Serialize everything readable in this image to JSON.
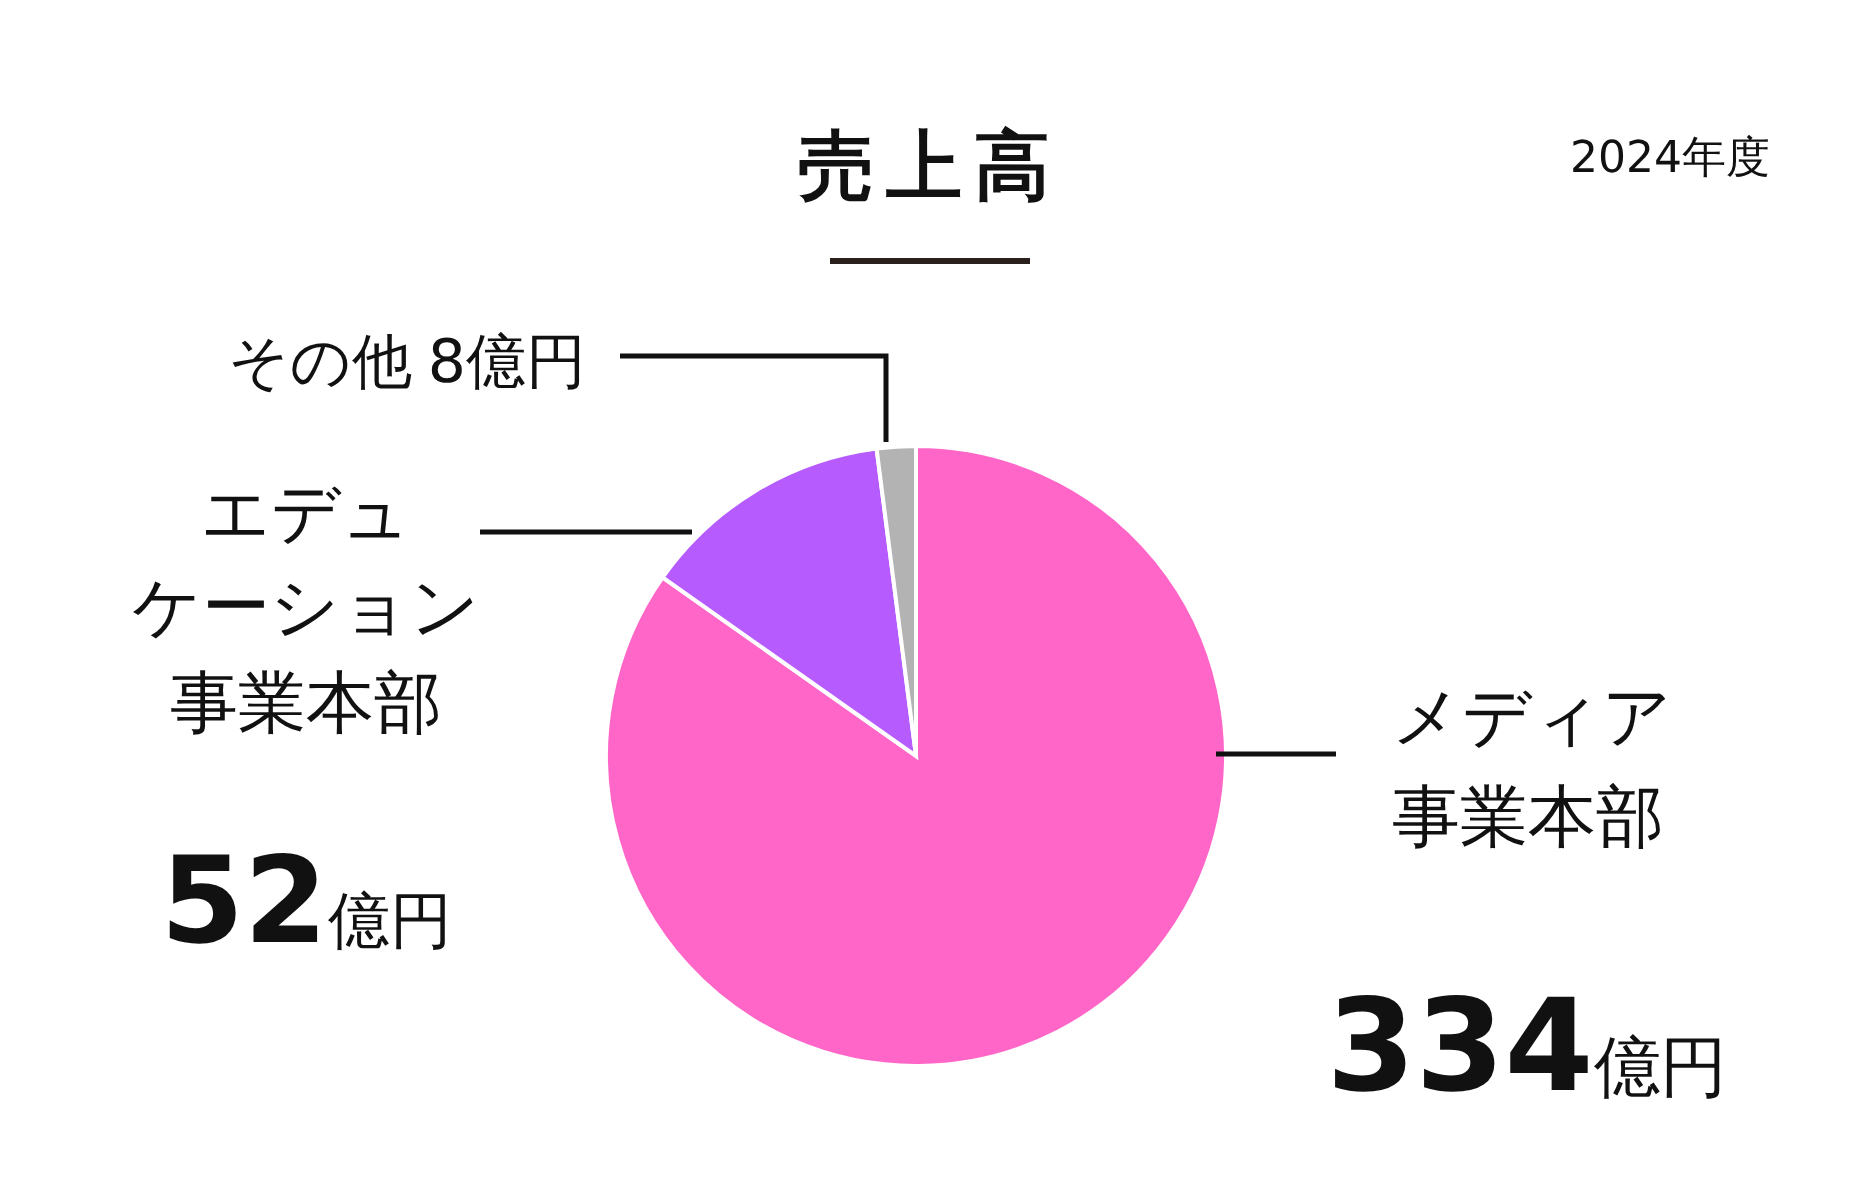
{
  "chart_data": {
    "type": "pie",
    "title": "売上高",
    "subtitle": "2024年度",
    "categories": [
      "メディア事業本部",
      "エデュケーション事業本部",
      "その他"
    ],
    "values": [
      334,
      52,
      8
    ],
    "colors": [
      "#ff66c8",
      "#b65cff",
      "#b3b3b3"
    ],
    "value_labels": [
      "334億円",
      "52億円",
      "8億円"
    ]
  }
}
